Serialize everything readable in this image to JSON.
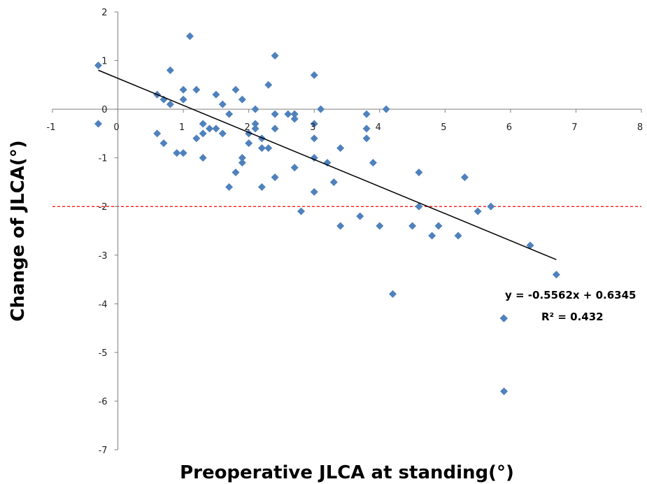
{
  "chart_data": {
    "type": "scatter",
    "xlabel": "Preoperative JLCA at standing(°)",
    "ylabel": "Change of JLCA(°)",
    "xlim": [
      -1,
      8
    ],
    "ylim": [
      -7,
      2
    ],
    "x_ticks": [
      "-1",
      "0",
      "1",
      "2",
      "3",
      "4",
      "5",
      "6",
      "7",
      "8"
    ],
    "y_ticks": [
      "2",
      "1",
      "0",
      "-1",
      "-2",
      "-3",
      "-4",
      "-5",
      "-6",
      "-7"
    ],
    "grid": false,
    "marker_color": "#4F81BD",
    "trendline": {
      "slope": -0.5562,
      "intercept": 0.6345,
      "x_range": [
        -0.3,
        6.7
      ],
      "equation": "y = -0.5562x + 0.6345",
      "r_squared": "R² = 0.432",
      "color": "#000000"
    },
    "reference_line": {
      "y": -2,
      "color": "#FF0000",
      "style": "dashed"
    },
    "points": [
      [
        -0.3,
        0.9
      ],
      [
        -0.3,
        -0.3
      ],
      [
        0.6,
        0.3
      ],
      [
        0.6,
        -0.5
      ],
      [
        0.7,
        0.2
      ],
      [
        0.7,
        -0.7
      ],
      [
        0.8,
        0.8
      ],
      [
        0.8,
        0.1
      ],
      [
        0.9,
        -0.9
      ],
      [
        1.0,
        0.4
      ],
      [
        1.0,
        0.2
      ],
      [
        1.0,
        -0.9
      ],
      [
        1.1,
        1.5
      ],
      [
        1.2,
        0.4
      ],
      [
        1.2,
        -0.6
      ],
      [
        1.3,
        -0.3
      ],
      [
        1.3,
        -0.5
      ],
      [
        1.3,
        -1.0
      ],
      [
        1.4,
        -0.4
      ],
      [
        1.5,
        0.3
      ],
      [
        1.5,
        -0.4
      ],
      [
        1.6,
        0.1
      ],
      [
        1.6,
        -0.5
      ],
      [
        1.7,
        -0.1
      ],
      [
        1.7,
        -1.6
      ],
      [
        1.8,
        0.4
      ],
      [
        1.8,
        -1.3
      ],
      [
        1.9,
        0.2
      ],
      [
        1.9,
        -1.0
      ],
      [
        1.9,
        -1.1
      ],
      [
        2.0,
        -0.5
      ],
      [
        2.0,
        -0.7
      ],
      [
        2.1,
        0.0
      ],
      [
        2.1,
        -0.3
      ],
      [
        2.1,
        -0.4
      ],
      [
        2.2,
        -0.6
      ],
      [
        2.2,
        -0.8
      ],
      [
        2.2,
        -1.6
      ],
      [
        2.3,
        0.5
      ],
      [
        2.3,
        -0.8
      ],
      [
        2.4,
        1.1
      ],
      [
        2.4,
        -0.1
      ],
      [
        2.4,
        -0.4
      ],
      [
        2.4,
        -1.4
      ],
      [
        2.6,
        -0.1
      ],
      [
        2.7,
        -0.1
      ],
      [
        2.7,
        -0.2
      ],
      [
        2.7,
        -1.2
      ],
      [
        2.8,
        -2.1
      ],
      [
        3.0,
        0.7
      ],
      [
        3.0,
        -0.3
      ],
      [
        3.0,
        -0.6
      ],
      [
        3.0,
        -1.0
      ],
      [
        3.0,
        -1.7
      ],
      [
        3.1,
        0.0
      ],
      [
        3.2,
        -1.1
      ],
      [
        3.3,
        -1.5
      ],
      [
        3.4,
        -0.8
      ],
      [
        3.4,
        -2.4
      ],
      [
        3.7,
        -2.2
      ],
      [
        3.8,
        -0.1
      ],
      [
        3.8,
        -0.4
      ],
      [
        3.8,
        -0.6
      ],
      [
        3.9,
        -1.1
      ],
      [
        4.0,
        -2.4
      ],
      [
        4.1,
        0.0
      ],
      [
        4.2,
        -3.8
      ],
      [
        4.5,
        -2.4
      ],
      [
        4.6,
        -1.3
      ],
      [
        4.6,
        -2.0
      ],
      [
        4.8,
        -2.6
      ],
      [
        4.9,
        -2.4
      ],
      [
        5.2,
        -2.6
      ],
      [
        5.3,
        -1.4
      ],
      [
        5.5,
        -2.1
      ],
      [
        5.7,
        -2.0
      ],
      [
        5.9,
        -4.3
      ],
      [
        5.9,
        -5.8
      ],
      [
        6.3,
        -2.8
      ],
      [
        6.7,
        -3.4
      ]
    ]
  }
}
